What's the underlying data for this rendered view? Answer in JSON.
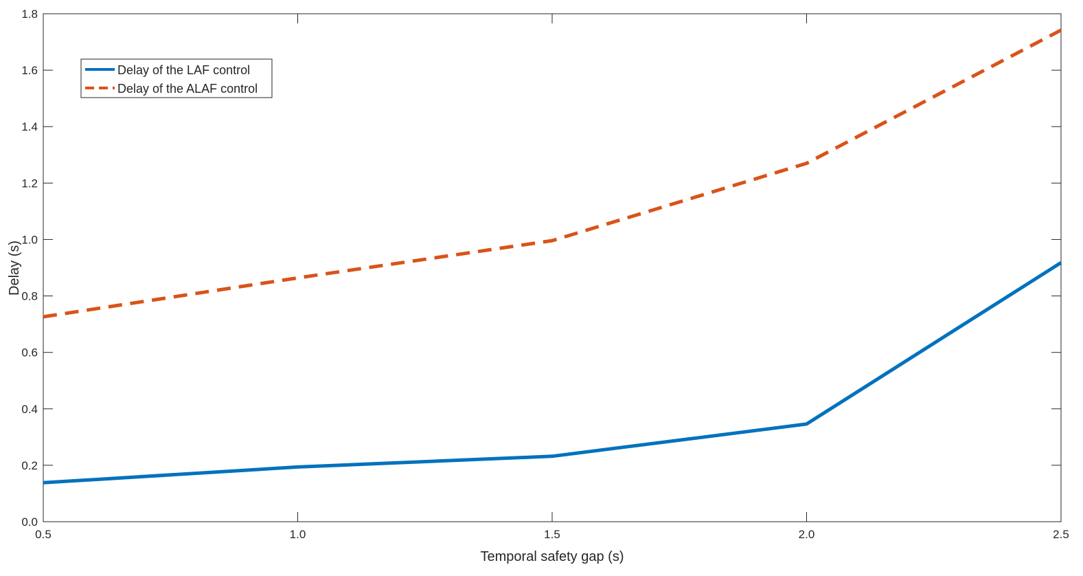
{
  "chart_data": {
    "type": "line",
    "title": "",
    "xlabel": "Temporal safety gap (s)",
    "ylabel": "Delay (s)",
    "xlim": [
      0.5,
      2.5
    ],
    "ylim": [
      0.0,
      1.8
    ],
    "x_ticks": [
      "0.5",
      "1.0",
      "1.5",
      "2.0",
      "2.5"
    ],
    "y_ticks": [
      "0.0",
      "0.2",
      "0.4",
      "0.6",
      "0.8",
      "1.0",
      "1.2",
      "1.4",
      "1.6",
      "1.8"
    ],
    "grid": false,
    "legend_position": "top-left",
    "series": [
      {
        "name": "Delay of the LAF control",
        "color": "#0072bd",
        "style": "solid",
        "x": [
          0.5,
          1.0,
          1.5,
          2.0,
          2.5
        ],
        "y": [
          0.138,
          0.194,
          0.232,
          0.346,
          0.918
        ]
      },
      {
        "name": "Delay of the ALAF control",
        "color": "#d95319",
        "style": "dashed",
        "x": [
          0.5,
          1.0,
          1.5,
          2.0,
          2.5
        ],
        "y": [
          0.726,
          0.864,
          0.996,
          1.27,
          1.742
        ]
      }
    ]
  }
}
